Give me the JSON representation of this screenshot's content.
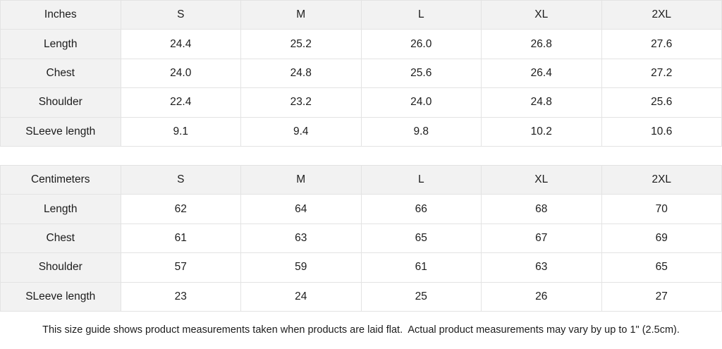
{
  "colors": {
    "header_bg": "#f2f2f2",
    "border": "#e3e3e3",
    "text": "#1c1c1c",
    "cell_bg": "#ffffff"
  },
  "tables": [
    {
      "unit_label": "Inches",
      "sizes": [
        "S",
        "M",
        "L",
        "XL",
        "2XL"
      ],
      "rows": [
        {
          "label": "Length",
          "values": [
            "24.4",
            "25.2",
            "26.0",
            "26.8",
            "27.6"
          ]
        },
        {
          "label": "Chest",
          "values": [
            "24.0",
            "24.8",
            "25.6",
            "26.4",
            "27.2"
          ]
        },
        {
          "label": "Shoulder",
          "values": [
            "22.4",
            "23.2",
            "24.0",
            "24.8",
            "25.6"
          ]
        },
        {
          "label": "SLeeve length",
          "values": [
            "9.1",
            "9.4",
            "9.8",
            "10.2",
            "10.6"
          ]
        }
      ]
    },
    {
      "unit_label": "Centimeters",
      "sizes": [
        "S",
        "M",
        "L",
        "XL",
        "2XL"
      ],
      "rows": [
        {
          "label": "Length",
          "values": [
            "62",
            "64",
            "66",
            "68",
            "70"
          ]
        },
        {
          "label": "Chest",
          "values": [
            "61",
            "63",
            "65",
            "67",
            "69"
          ]
        },
        {
          "label": "Shoulder",
          "values": [
            "57",
            "59",
            "61",
            "63",
            "65"
          ]
        },
        {
          "label": "SLeeve length",
          "values": [
            "23",
            "24",
            "25",
            "26",
            "27"
          ]
        }
      ]
    }
  ],
  "footer": {
    "note": "This size guide shows product measurements taken when products are laid flat.  Actual product measurements may vary by up to 1\" (2.5cm)."
  }
}
